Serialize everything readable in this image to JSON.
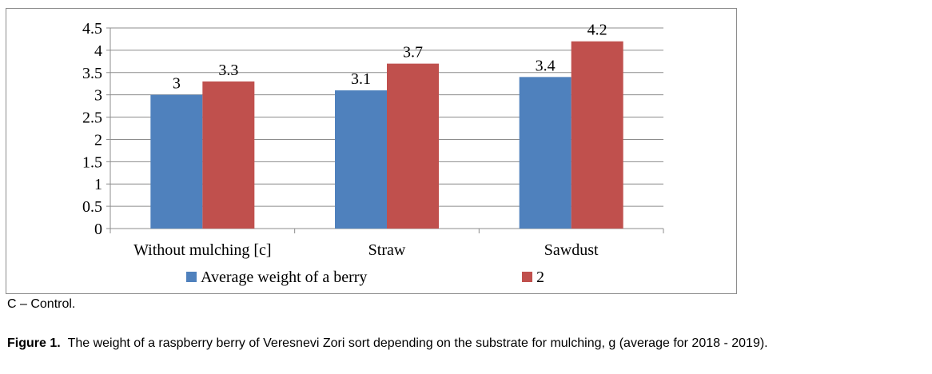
{
  "chart_data": {
    "type": "bar",
    "categories": [
      "Without mulching [c]",
      "Straw",
      "Sawdust"
    ],
    "series": [
      {
        "name": "Average weight of a berry",
        "values": [
          3,
          3.1,
          3.4
        ],
        "labels": [
          "3",
          "3.1",
          "3.4"
        ],
        "color": "#4f81bd"
      },
      {
        "name": "2",
        "values": [
          3.3,
          3.7,
          4.2
        ],
        "labels": [
          "3.3",
          "3.7",
          "4.2"
        ],
        "color": "#c0504d"
      }
    ],
    "ylim": [
      0,
      4.5
    ],
    "yticks": [
      "0",
      "0.5",
      "1",
      "1.5",
      "2",
      "2.5",
      "3",
      "3.5",
      "4",
      "4.5"
    ],
    "grid": true,
    "legend": "bottom"
  },
  "footnote": "C – Control.",
  "caption": {
    "label": "Figure 1.",
    "text": "The weight of a raspberry berry of Veresnevi Zori sort depending on the substrate for mulching, g (average for 2018 - 2019)."
  }
}
